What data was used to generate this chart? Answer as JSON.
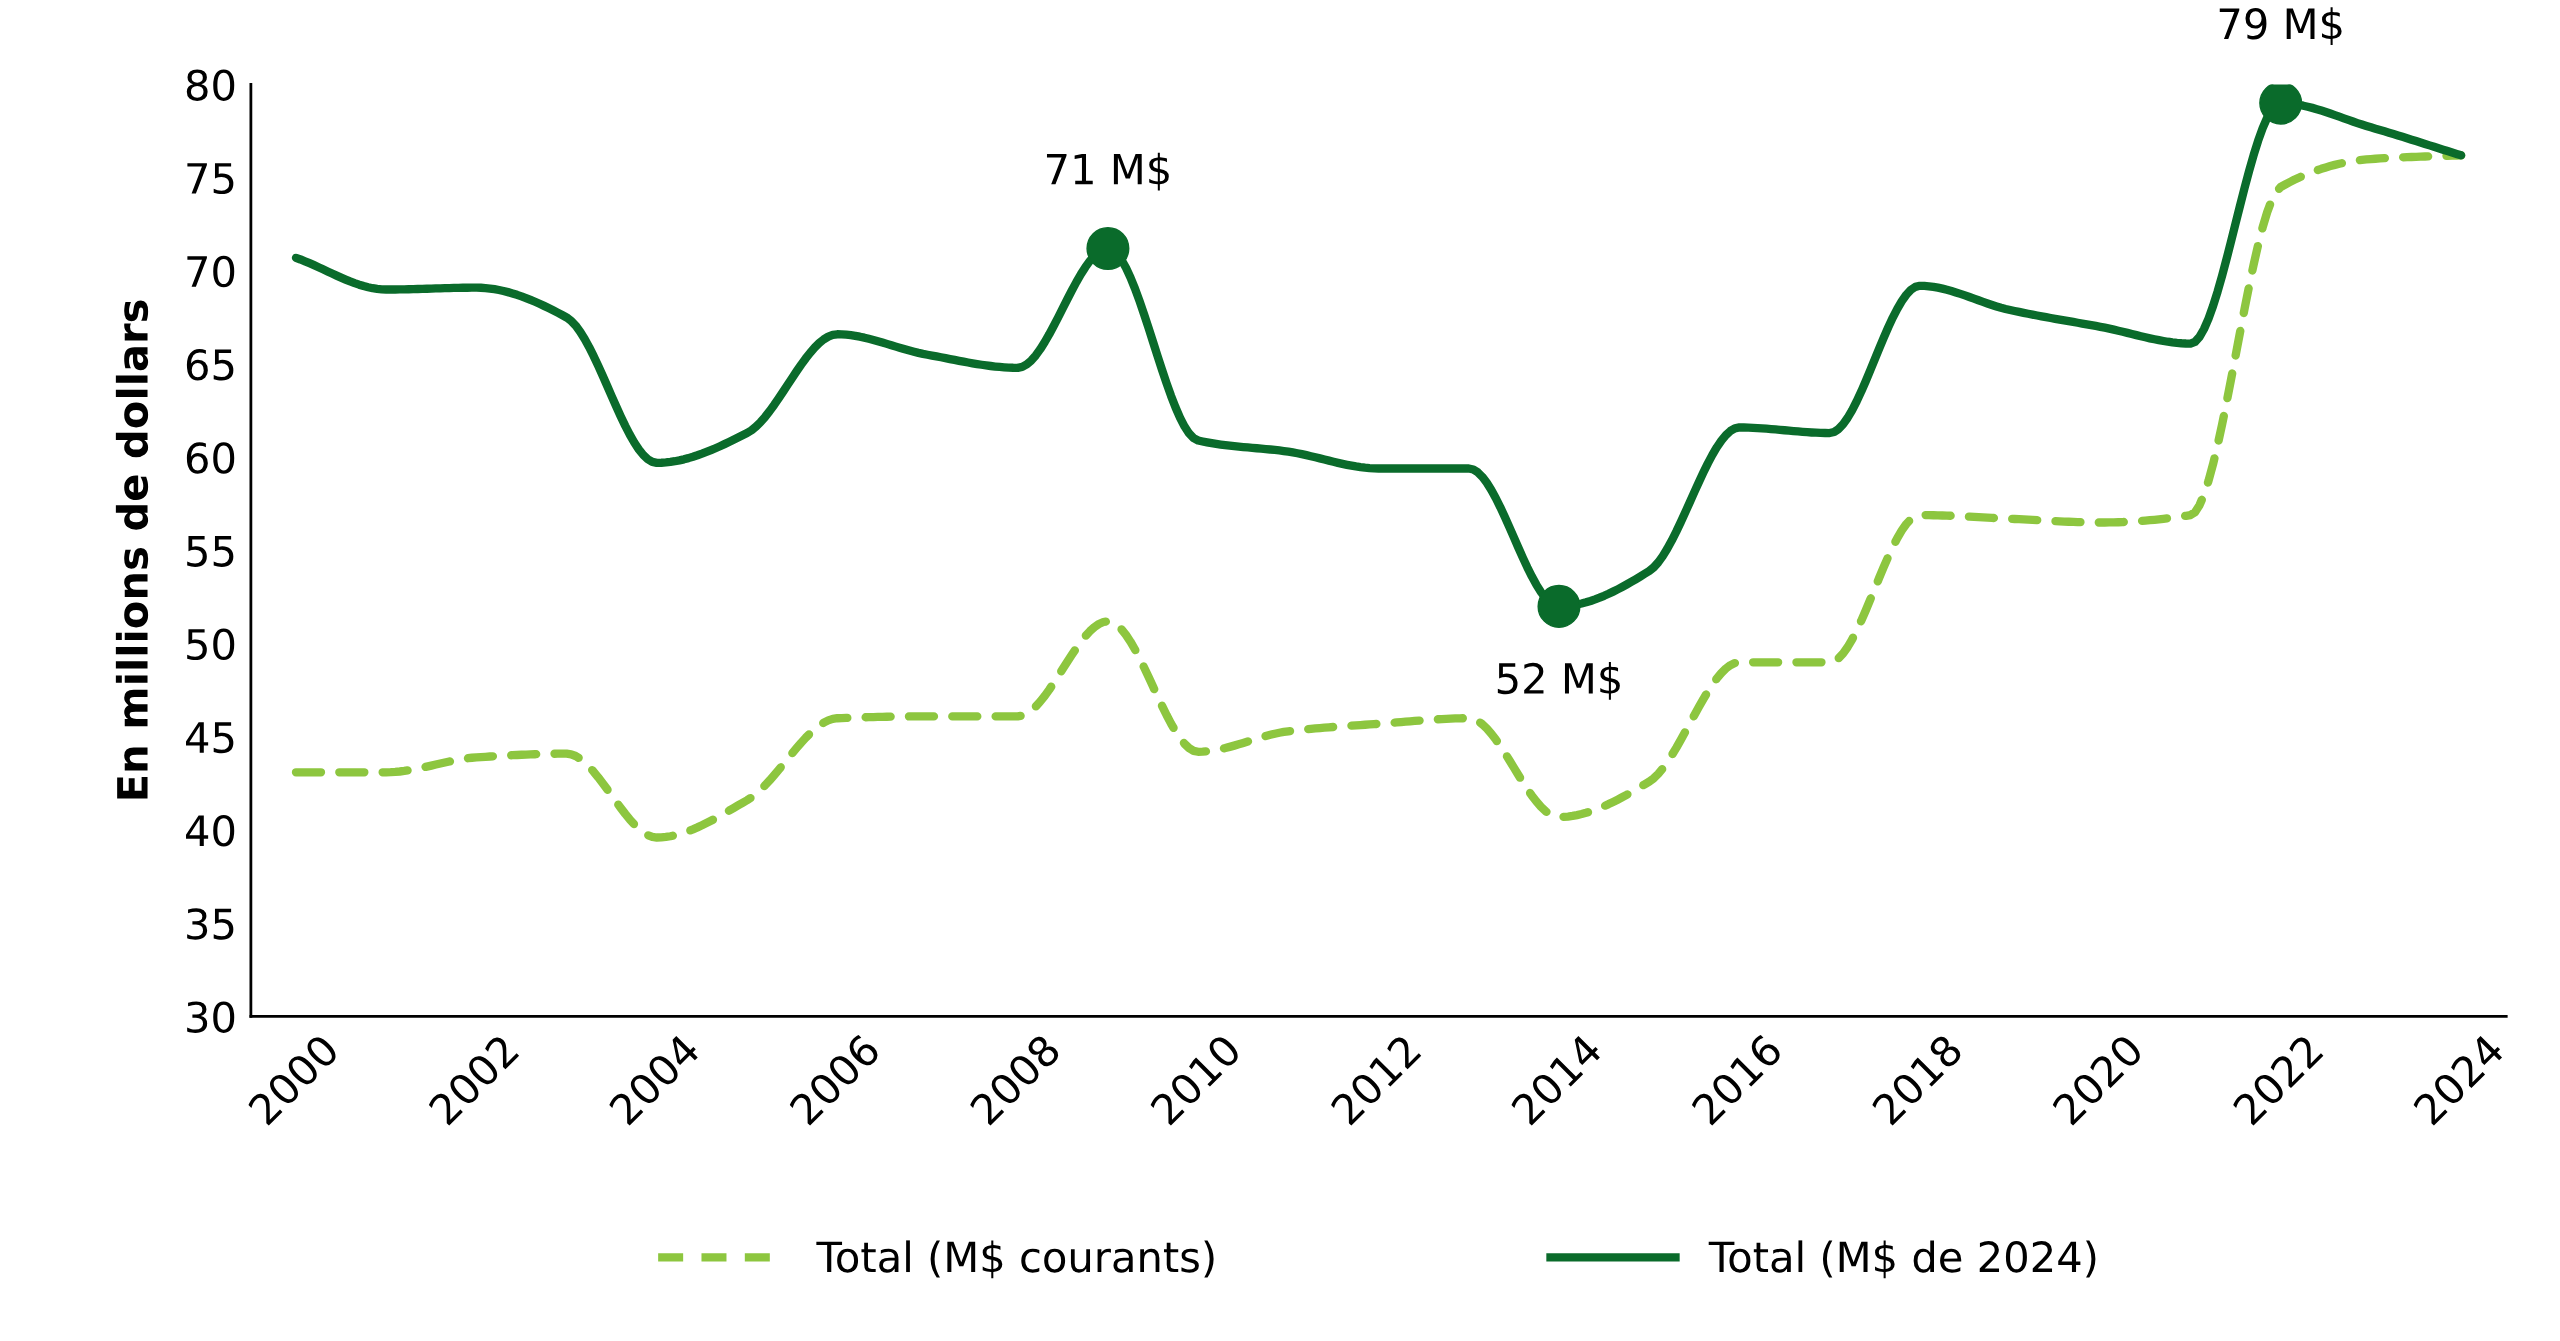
{
  "chart_data": {
    "type": "line",
    "ylabel": "En millions de dollars",
    "x": [
      2000,
      2001,
      2002,
      2003,
      2004,
      2005,
      2006,
      2007,
      2008,
      2009,
      2010,
      2011,
      2012,
      2013,
      2014,
      2015,
      2016,
      2017,
      2018,
      2019,
      2020,
      2021,
      2022,
      2023,
      2024
    ],
    "series": [
      {
        "name": "Total (M$ courants)",
        "color": "#8dc63f",
        "line_style": "dashed",
        "values": [
          43.1,
          43.1,
          43.9,
          44.1,
          39.6,
          41.6,
          46.0,
          46.1,
          46.1,
          51.2,
          44.2,
          45.3,
          45.7,
          46.0,
          40.7,
          42.6,
          49.0,
          49.0,
          56.9,
          56.7,
          56.5,
          56.9,
          74.5,
          76.0,
          76.2
        ]
      },
      {
        "name": "Total (M$ de 2024)",
        "color": "#0a6b2b",
        "line_style": "solid",
        "values": [
          70.7,
          69.0,
          69.1,
          67.5,
          59.7,
          61.3,
          66.6,
          65.5,
          64.8,
          71.2,
          60.9,
          60.3,
          59.4,
          59.4,
          52.0,
          53.9,
          61.6,
          61.3,
          69.2,
          67.9,
          67.0,
          66.1,
          79.0,
          77.7,
          76.2
        ]
      }
    ],
    "annotations": [
      {
        "text": "71 M$",
        "x": 2009,
        "y": 71.2
      },
      {
        "text": "52 M$",
        "x": 2014,
        "y": 52.0
      },
      {
        "text": "79 M$",
        "x": 2022,
        "y": 79.0
      }
    ],
    "xlim": [
      1999.5,
      2024.5
    ],
    "xticks": [
      2000,
      2002,
      2004,
      2006,
      2008,
      2010,
      2012,
      2014,
      2016,
      2018,
      2020,
      2022,
      2024
    ],
    "ylim": [
      30,
      80
    ],
    "yticks": [
      30,
      35,
      40,
      45,
      50,
      55,
      60,
      65,
      70,
      75,
      80
    ],
    "grid": false,
    "legend": "bottom",
    "marker": "none"
  }
}
